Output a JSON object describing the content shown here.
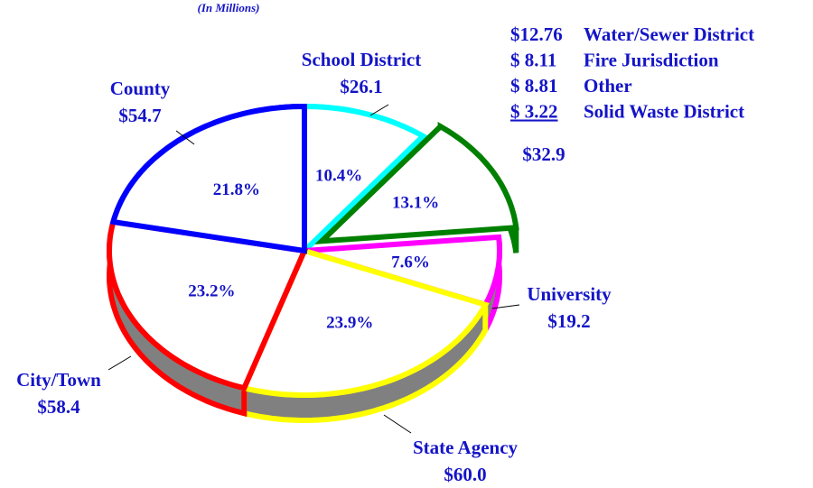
{
  "chart_data": {
    "type": "pie",
    "subtitle": "(In Millions)",
    "categories": [
      "School District",
      null,
      "University",
      "State Agency",
      "City/Town",
      "County"
    ],
    "values": [
      10.4,
      13.1,
      7.6,
      23.9,
      23.2,
      21.8
    ],
    "value_labels": [
      "10.4%",
      "13.1%",
      "7.6%",
      "23.9%",
      "23.2%",
      "21.8%"
    ],
    "amount_labels": [
      "$26.1",
      "$32.9",
      "$19.2",
      "$60.0",
      "$58.4",
      "$54.7"
    ],
    "colors": [
      "#00ffff",
      "#008000",
      "#ff00ff",
      "#ffff00",
      "#ff0000",
      "#0000ff"
    ],
    "exploded": [
      false,
      true,
      false,
      false,
      false,
      false
    ],
    "breakdown": [
      {
        "amount": "$12.76",
        "name": "Water/Sewer District"
      },
      {
        "amount": "$ 8.11",
        "name": "Fire Jurisdiction"
      },
      {
        "amount": "$ 8.81",
        "name": "Other"
      },
      {
        "amount": "$ 3.22",
        "name": "Solid Waste District",
        "underlined": true
      }
    ]
  }
}
